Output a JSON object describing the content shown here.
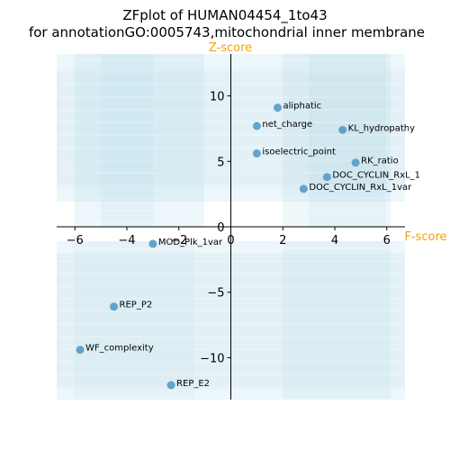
{
  "chart_data": {
    "type": "scatter",
    "title_line1": "ZFplot of HUMAN04454_1to43",
    "title_line2": "for annotationGO:0005743,mitochondrial inner membrane",
    "xlabel": "F-score",
    "ylabel": "Z-score",
    "xlim": [
      -6.7,
      6.7
    ],
    "ylim": [
      -13.2,
      13.2
    ],
    "xticks": [
      -6,
      -4,
      -2,
      0,
      2,
      4,
      6
    ],
    "yticks": [
      -10,
      -5,
      0,
      5,
      10
    ],
    "grid": false,
    "point_color": "#5b9fc8",
    "axis_label_color": "#f0a30a",
    "shading_color": "#add8e6",
    "points": [
      {
        "label": "aliphatic",
        "x": 1.8,
        "y": 9.1
      },
      {
        "label": "net_charge",
        "x": 1.0,
        "y": 7.7
      },
      {
        "label": "KL_hydropathy",
        "x": 4.3,
        "y": 7.4
      },
      {
        "label": "isoelectric_point",
        "x": 1.0,
        "y": 5.6
      },
      {
        "label": "RK_ratio",
        "x": 4.8,
        "y": 4.9
      },
      {
        "label": "DOC_CYCLIN_RxL_1",
        "x": 3.7,
        "y": 3.8
      },
      {
        "label": "DOC_CYCLIN_RxL_1var",
        "x": 2.8,
        "y": 2.9
      },
      {
        "label": "MOD_Plk_1var",
        "x": -3.0,
        "y": -1.3
      },
      {
        "label": "REP_P2",
        "x": -4.5,
        "y": -6.1
      },
      {
        "label": "WF_complexity",
        "x": -5.8,
        "y": -9.4
      },
      {
        "label": "REP_E2",
        "x": -2.3,
        "y": -12.1
      }
    ]
  }
}
